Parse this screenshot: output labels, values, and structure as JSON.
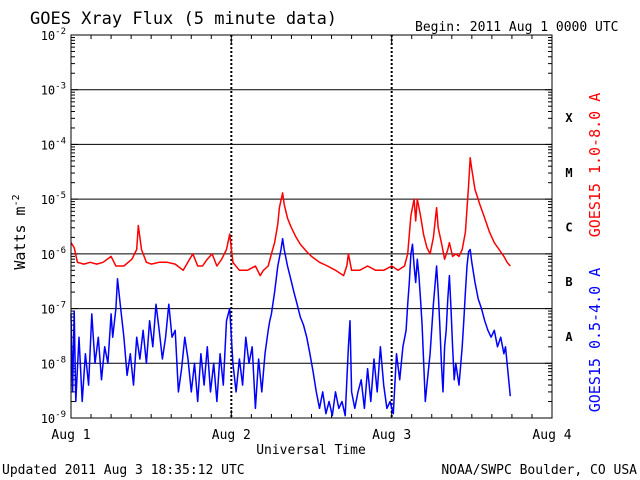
{
  "chart_data": {
    "type": "line",
    "title": "GOES Xray Flux (5 minute data)",
    "begin_label": "Begin:  2011 Aug 1 0000 UTC",
    "xlabel": "Universal Time",
    "ylabel": "Watts m",
    "ylabel_sup": "-2",
    "footer_left": "Updated 2011 Aug  3 18:35:12 UTC",
    "footer_right": "NOAA/SWPC Boulder, CO USA",
    "x_unit": "days since 2011 Aug 1 0000 UTC",
    "x_ticks": [
      "Aug 1",
      "Aug 2",
      "Aug 3",
      "Aug 4"
    ],
    "xlim": [
      0,
      3
    ],
    "ylim": [
      1e-09,
      0.01
    ],
    "y_scale": "log",
    "y_ticks": [
      {
        "base": "10",
        "exp": "-9"
      },
      {
        "base": "10",
        "exp": "-8"
      },
      {
        "base": "10",
        "exp": "-7"
      },
      {
        "base": "10",
        "exp": "-6"
      },
      {
        "base": "10",
        "exp": "-5"
      },
      {
        "base": "10",
        "exp": "-4"
      },
      {
        "base": "10",
        "exp": "-3"
      },
      {
        "base": "10",
        "exp": "-2"
      }
    ],
    "flare_classes": [
      {
        "label": "A",
        "value": 1e-08
      },
      {
        "label": "B",
        "value": 1e-07
      },
      {
        "label": "C",
        "value": 1e-06
      },
      {
        "label": "M",
        "value": 1e-05
      },
      {
        "label": "X",
        "value": 0.0001
      }
    ],
    "grid": "horizontal at each decade from 1e-8 to 1e-3",
    "series": [
      {
        "name": "GOES15 1.0-8.0 A",
        "color": "#ff0000",
        "points": [
          [
            0.0,
            1.6e-06
          ],
          [
            0.02,
            1.3e-06
          ],
          [
            0.04,
            7e-07
          ],
          [
            0.08,
            6.5e-07
          ],
          [
            0.12,
            7e-07
          ],
          [
            0.16,
            6.5e-07
          ],
          [
            0.2,
            7e-07
          ],
          [
            0.25,
            9e-07
          ],
          [
            0.28,
            6e-07
          ],
          [
            0.33,
            6e-07
          ],
          [
            0.38,
            8e-07
          ],
          [
            0.41,
            1.2e-06
          ],
          [
            0.42,
            3.3e-06
          ],
          [
            0.44,
            1.2e-06
          ],
          [
            0.47,
            7e-07
          ],
          [
            0.5,
            6.5e-07
          ],
          [
            0.55,
            7e-07
          ],
          [
            0.6,
            7e-07
          ],
          [
            0.65,
            6.5e-07
          ],
          [
            0.7,
            5e-07
          ],
          [
            0.74,
            8e-07
          ],
          [
            0.76,
            1e-06
          ],
          [
            0.79,
            6e-07
          ],
          [
            0.82,
            6e-07
          ],
          [
            0.85,
            8e-07
          ],
          [
            0.88,
            1e-06
          ],
          [
            0.91,
            6e-07
          ],
          [
            0.94,
            8e-07
          ],
          [
            0.97,
            1.2e-06
          ],
          [
            0.99,
            2.3e-06
          ],
          [
            1.01,
            7e-07
          ],
          [
            1.05,
            5e-07
          ],
          [
            1.1,
            5e-07
          ],
          [
            1.15,
            6e-07
          ],
          [
            1.18,
            4e-07
          ],
          [
            1.2,
            5e-07
          ],
          [
            1.23,
            6e-07
          ],
          [
            1.25,
            1e-06
          ],
          [
            1.27,
            1.6e-06
          ],
          [
            1.29,
            3.5e-06
          ],
          [
            1.3,
            7e-06
          ],
          [
            1.32,
            1.3e-05
          ],
          [
            1.33,
            8e-06
          ],
          [
            1.35,
            4.5e-06
          ],
          [
            1.37,
            3.2e-06
          ],
          [
            1.4,
            2.1e-06
          ],
          [
            1.43,
            1.5e-06
          ],
          [
            1.47,
            1.1e-06
          ],
          [
            1.5,
            9e-07
          ],
          [
            1.55,
            7e-07
          ],
          [
            1.6,
            6e-07
          ],
          [
            1.65,
            5e-07
          ],
          [
            1.7,
            4e-07
          ],
          [
            1.72,
            6e-07
          ],
          [
            1.73,
            1e-06
          ],
          [
            1.75,
            5e-07
          ],
          [
            1.8,
            5e-07
          ],
          [
            1.85,
            6e-07
          ],
          [
            1.9,
            5e-07
          ],
          [
            1.95,
            5e-07
          ],
          [
            2.0,
            6e-07
          ],
          [
            2.04,
            5e-07
          ],
          [
            2.08,
            6e-07
          ],
          [
            2.1,
            1e-06
          ],
          [
            2.12,
            5e-06
          ],
          [
            2.14,
            1e-05
          ],
          [
            2.15,
            4e-06
          ],
          [
            2.16,
            1e-05
          ],
          [
            2.18,
            5e-06
          ],
          [
            2.2,
            2.2e-06
          ],
          [
            2.22,
            1.3e-06
          ],
          [
            2.24,
            1e-06
          ],
          [
            2.26,
            2e-06
          ],
          [
            2.28,
            7e-06
          ],
          [
            2.29,
            3e-06
          ],
          [
            2.31,
            1.6e-06
          ],
          [
            2.33,
            8e-07
          ],
          [
            2.35,
            1.2e-06
          ],
          [
            2.36,
            1.6e-06
          ],
          [
            2.38,
            9e-07
          ],
          [
            2.4,
            1e-06
          ],
          [
            2.42,
            9e-07
          ],
          [
            2.44,
            1.2e-06
          ],
          [
            2.46,
            2.5e-06
          ],
          [
            2.48,
            1.8e-05
          ],
          [
            2.49,
            5.7e-05
          ],
          [
            2.5,
            3.5e-05
          ],
          [
            2.52,
            1.5e-05
          ],
          [
            2.55,
            8e-06
          ],
          [
            2.58,
            4.5e-06
          ],
          [
            2.61,
            2.5e-06
          ],
          [
            2.64,
            1.6e-06
          ],
          [
            2.67,
            1.2e-06
          ],
          [
            2.7,
            9e-07
          ],
          [
            2.72,
            7e-07
          ],
          [
            2.74,
            6e-07
          ]
        ]
      },
      {
        "name": "GOES15 0.5-4.0 A",
        "color": "#0000ff",
        "points": [
          [
            0.0,
            8e-08
          ],
          [
            0.01,
            3e-09
          ],
          [
            0.02,
            9e-08
          ],
          [
            0.03,
            2e-09
          ],
          [
            0.05,
            3e-08
          ],
          [
            0.07,
            2e-09
          ],
          [
            0.09,
            1.5e-08
          ],
          [
            0.11,
            4e-09
          ],
          [
            0.13,
            8e-08
          ],
          [
            0.15,
            1e-08
          ],
          [
            0.17,
            3e-08
          ],
          [
            0.19,
            5e-09
          ],
          [
            0.21,
            2e-08
          ],
          [
            0.23,
            1e-08
          ],
          [
            0.25,
            8e-08
          ],
          [
            0.26,
            3e-08
          ],
          [
            0.28,
            1e-07
          ],
          [
            0.29,
            3.5e-07
          ],
          [
            0.31,
            1e-07
          ],
          [
            0.33,
            3e-08
          ],
          [
            0.35,
            6e-09
          ],
          [
            0.37,
            1.5e-08
          ],
          [
            0.39,
            4e-09
          ],
          [
            0.41,
            3e-08
          ],
          [
            0.43,
            1.2e-08
          ],
          [
            0.45,
            4e-08
          ],
          [
            0.47,
            1e-08
          ],
          [
            0.49,
            6e-08
          ],
          [
            0.51,
            2e-08
          ],
          [
            0.53,
            1.2e-07
          ],
          [
            0.55,
            4e-08
          ],
          [
            0.57,
            1.2e-08
          ],
          [
            0.59,
            3e-08
          ],
          [
            0.61,
            1.2e-07
          ],
          [
            0.63,
            3e-08
          ],
          [
            0.65,
            4e-08
          ],
          [
            0.67,
            3e-09
          ],
          [
            0.69,
            8e-09
          ],
          [
            0.71,
            3e-08
          ],
          [
            0.73,
            1.2e-08
          ],
          [
            0.75,
            3e-09
          ],
          [
            0.77,
            1e-08
          ],
          [
            0.79,
            2e-09
          ],
          [
            0.81,
            1.5e-08
          ],
          [
            0.83,
            4e-09
          ],
          [
            0.85,
            2e-08
          ],
          [
            0.87,
            3e-09
          ],
          [
            0.89,
            1e-08
          ],
          [
            0.91,
            2e-09
          ],
          [
            0.93,
            1.5e-08
          ],
          [
            0.95,
            4e-09
          ],
          [
            0.97,
            6e-08
          ],
          [
            0.99,
            1e-07
          ],
          [
            1.01,
            1e-08
          ],
          [
            1.03,
            3e-09
          ],
          [
            1.05,
            1.2e-08
          ],
          [
            1.07,
            4e-09
          ],
          [
            1.09,
            3e-08
          ],
          [
            1.11,
            1e-08
          ],
          [
            1.13,
            2e-08
          ],
          [
            1.15,
            1.5e-09
          ],
          [
            1.17,
            1.2e-08
          ],
          [
            1.19,
            3e-09
          ],
          [
            1.21,
            1.5e-08
          ],
          [
            1.23,
            4e-08
          ],
          [
            1.24,
            6e-08
          ],
          [
            1.25,
            8e-08
          ],
          [
            1.27,
            2e-07
          ],
          [
            1.29,
            6e-07
          ],
          [
            1.31,
            1.2e-06
          ],
          [
            1.32,
            1.9e-06
          ],
          [
            1.33,
            1.2e-06
          ],
          [
            1.35,
            6e-07
          ],
          [
            1.37,
            3.5e-07
          ],
          [
            1.39,
            2e-07
          ],
          [
            1.41,
            1.2e-07
          ],
          [
            1.43,
            7e-08
          ],
          [
            1.45,
            5e-08
          ],
          [
            1.47,
            3e-08
          ],
          [
            1.49,
            1.5e-08
          ],
          [
            1.51,
            7e-09
          ],
          [
            1.53,
            3e-09
          ],
          [
            1.55,
            1.5e-09
          ],
          [
            1.57,
            3e-09
          ],
          [
            1.59,
            1.2e-09
          ],
          [
            1.61,
            2e-09
          ],
          [
            1.63,
            1.1e-09
          ],
          [
            1.65,
            3e-09
          ],
          [
            1.67,
            1.5e-09
          ],
          [
            1.69,
            2e-09
          ],
          [
            1.71,
            1.1e-09
          ],
          [
            1.73,
            2e-08
          ],
          [
            1.74,
            6e-08
          ],
          [
            1.75,
            3e-09
          ],
          [
            1.77,
            1.5e-09
          ],
          [
            1.79,
            3e-09
          ],
          [
            1.81,
            5e-09
          ],
          [
            1.83,
            1.5e-09
          ],
          [
            1.85,
            8e-09
          ],
          [
            1.87,
            2e-09
          ],
          [
            1.89,
            1.2e-08
          ],
          [
            1.91,
            3e-09
          ],
          [
            1.93,
            2e-08
          ],
          [
            1.95,
            4e-09
          ],
          [
            1.97,
            1.5e-09
          ],
          [
            1.99,
            2e-09
          ],
          [
            2.01,
            1.2e-09
          ],
          [
            2.03,
            1.5e-08
          ],
          [
            2.05,
            5e-09
          ],
          [
            2.07,
            2e-08
          ],
          [
            2.09,
            4e-08
          ],
          [
            2.1,
            1.2e-07
          ],
          [
            2.11,
            3e-07
          ],
          [
            2.12,
            1e-06
          ],
          [
            2.13,
            1.5e-06
          ],
          [
            2.14,
            6e-07
          ],
          [
            2.15,
            3e-07
          ],
          [
            2.16,
            8e-07
          ],
          [
            2.17,
            4e-07
          ],
          [
            2.18,
            1.5e-07
          ],
          [
            2.19,
            5e-08
          ],
          [
            2.2,
            1e-08
          ],
          [
            2.21,
            2e-09
          ],
          [
            2.22,
            4e-09
          ],
          [
            2.24,
            1.5e-08
          ],
          [
            2.26,
            1.2e-07
          ],
          [
            2.28,
            6e-07
          ],
          [
            2.29,
            2e-07
          ],
          [
            2.3,
            5e-08
          ],
          [
            2.31,
            1e-08
          ],
          [
            2.32,
            3e-09
          ],
          [
            2.33,
            2e-08
          ],
          [
            2.34,
            4e-08
          ],
          [
            2.35,
            1.5e-07
          ],
          [
            2.36,
            4e-07
          ],
          [
            2.37,
            1e-07
          ],
          [
            2.38,
            2e-08
          ],
          [
            2.39,
            5e-09
          ],
          [
            2.4,
            1e-08
          ],
          [
            2.42,
            4e-09
          ],
          [
            2.44,
            2e-08
          ],
          [
            2.45,
            6e-08
          ],
          [
            2.46,
            2e-07
          ],
          [
            2.47,
            6e-07
          ],
          [
            2.48,
            1.1e-06
          ],
          [
            2.49,
            1.2e-06
          ],
          [
            2.5,
            7e-07
          ],
          [
            2.52,
            3e-07
          ],
          [
            2.54,
            1.5e-07
          ],
          [
            2.56,
            1e-07
          ],
          [
            2.58,
            6e-08
          ],
          [
            2.6,
            4e-08
          ],
          [
            2.62,
            3e-08
          ],
          [
            2.64,
            4e-08
          ],
          [
            2.66,
            2e-08
          ],
          [
            2.68,
            3e-08
          ],
          [
            2.7,
            1.5e-08
          ],
          [
            2.71,
            2e-08
          ],
          [
            2.72,
            1e-08
          ],
          [
            2.73,
            5e-09
          ],
          [
            2.74,
            2.5e-09
          ]
        ]
      }
    ]
  }
}
